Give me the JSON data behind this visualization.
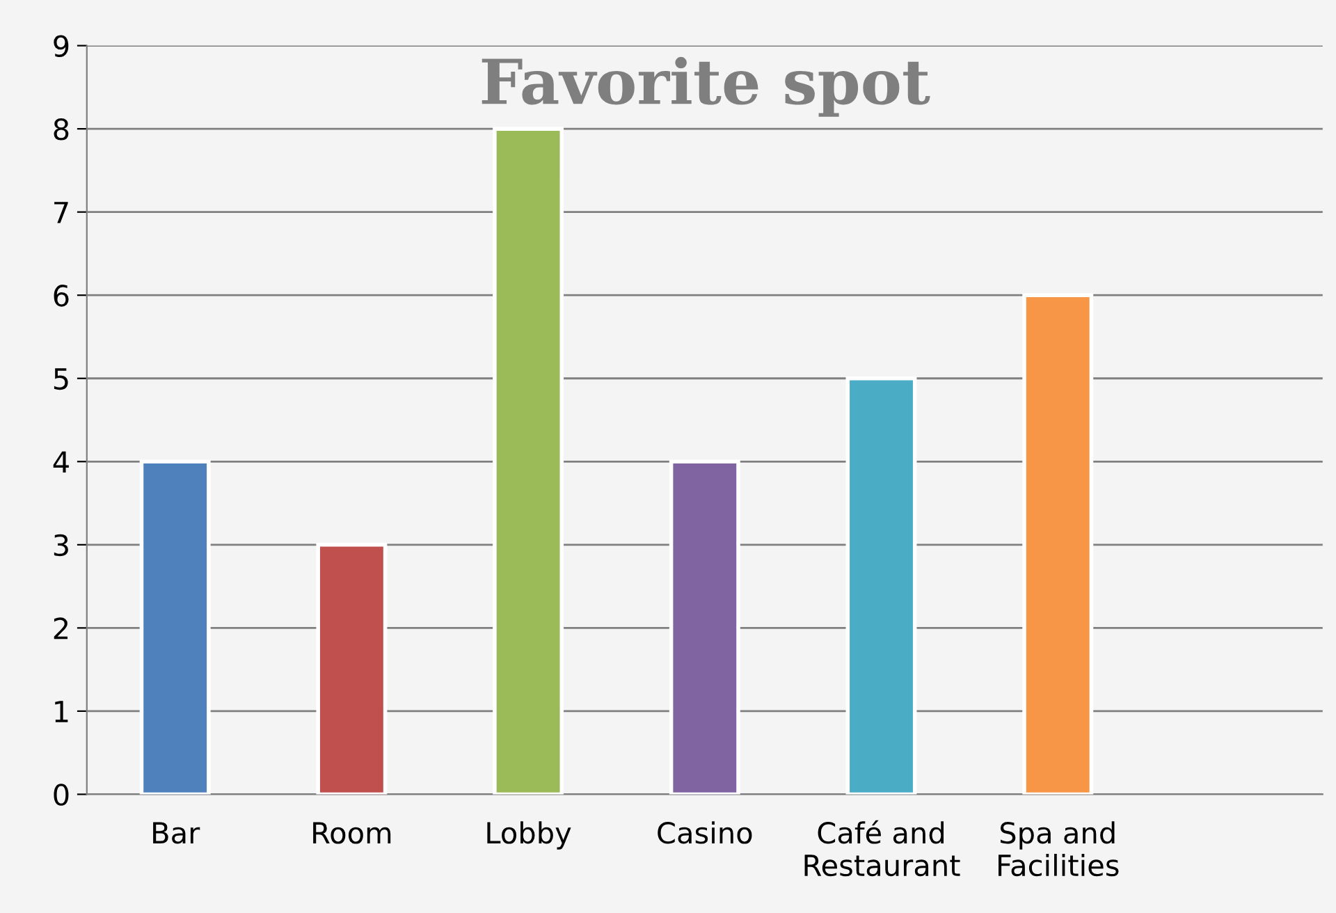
{
  "chart_data": {
    "type": "bar",
    "title": "Favorite spot",
    "categories": [
      "Bar",
      "Room",
      "Lobby",
      "Casino",
      "Café and\nRestaurant",
      "Spa and\nFacilities",
      null
    ],
    "values": [
      4,
      3,
      8,
      4,
      5,
      6,
      null
    ],
    "colors": [
      "#4f81bd",
      "#c0504d",
      "#9bbb59",
      "#8064a2",
      "#4bacc6",
      "#f79646",
      "#000000"
    ],
    "ylim": [
      0,
      9
    ],
    "yticks": [
      0,
      1,
      2,
      3,
      4,
      5,
      6,
      7,
      8,
      9
    ],
    "grid": "y",
    "legend": false
  }
}
